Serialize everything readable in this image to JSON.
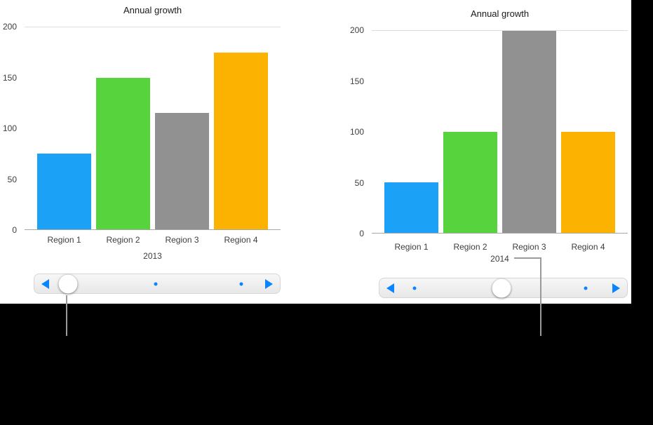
{
  "chart_data": [
    {
      "type": "bar",
      "title": "Annual growth",
      "categories": [
        "Region 1",
        "Region 2",
        "Region 3",
        "Region 4"
      ],
      "values": [
        75,
        150,
        115,
        175
      ],
      "bar_colors": [
        "#1ba1f5",
        "#57d33e",
        "#919191",
        "#fcb200"
      ],
      "xlabel": "2013",
      "ylabel": "",
      "ylim": [
        0,
        200
      ],
      "y_ticks": [
        0,
        50,
        100,
        150,
        200
      ],
      "grid": "top-rule-and-baseline-only",
      "legend": "none"
    },
    {
      "type": "bar",
      "title": "Annual growth",
      "categories": [
        "Region 1",
        "Region 2",
        "Region 3",
        "Region 4"
      ],
      "values": [
        50,
        100,
        200,
        100
      ],
      "bar_colors": [
        "#1ba1f5",
        "#57d33e",
        "#919191",
        "#fcb200"
      ],
      "xlabel": "2014",
      "ylabel": "",
      "ylim": [
        0,
        200
      ],
      "y_ticks": [
        0,
        50,
        100,
        150,
        200
      ],
      "grid": "top-rule-and-baseline-only",
      "legend": "none"
    }
  ],
  "sliders": [
    {
      "accent": "#0b84ff",
      "knob_pct": 13.6,
      "dot_pcts": [
        49.4,
        84.4
      ]
    },
    {
      "accent": "#0b84ff",
      "knob_pct": 49.3,
      "dot_pcts": [
        14.1,
        83.4
      ]
    }
  ],
  "colors": {
    "panel_background": "#ffffff",
    "mask_background": "#000000",
    "callout_line": "#9a9a9a"
  }
}
